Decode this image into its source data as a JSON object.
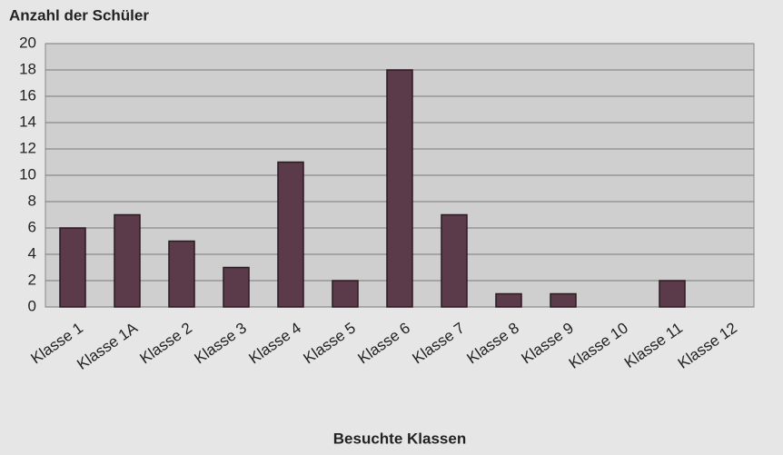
{
  "chart_data": {
    "type": "bar",
    "title": "Anzahl der Schüler",
    "x_label": "Besuchte Klassen",
    "categories": [
      "Klasse 1",
      "Klasse 1A",
      "Klasse 2",
      "Klasse 3",
      "Klasse 4",
      "Klasse 5",
      "Klasse 6",
      "Klasse 7",
      "Klasse 8",
      "Klasse 9",
      "Klasse 10",
      "Klasse 11",
      "Klasse 12"
    ],
    "values": [
      6,
      7,
      5,
      3,
      11,
      2,
      18,
      7,
      1,
      1,
      0,
      2,
      0
    ],
    "color": "#5b3a4a",
    "ylim": [
      0,
      20
    ],
    "yticks": [
      0,
      2,
      4,
      6,
      8,
      10,
      12,
      14,
      16,
      18,
      20
    ],
    "grid": true
  }
}
